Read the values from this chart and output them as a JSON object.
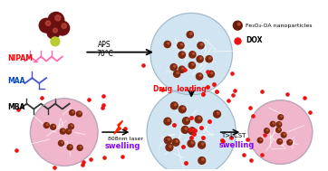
{
  "bg_color": "#ffffff",
  "legend": {
    "fe3o4_label": "Fe₃O₄-OA nanoparticles",
    "dox_label": "DOX",
    "fe3o4_color": "#6B1A0A",
    "dox_color": "#EE1111"
  },
  "labels": {
    "NIPAM": {
      "text": "NIPAM",
      "color": "#FF0000"
    },
    "MAA": {
      "text": "MAA",
      "color": "#0044CC"
    },
    "MBA": {
      "text": "MBA",
      "color": "#000000"
    },
    "APS": {
      "text": "APS",
      "color": "#000000"
    },
    "temp": {
      "text": "70°C",
      "color": "#000000"
    },
    "drug_loading": {
      "text": "Drug  loading",
      "color": "#FF0000"
    },
    "laser": {
      "text": "808nm laser",
      "color": "#000000"
    },
    "swelling1": {
      "text": "swelling",
      "color": "#8B00FF"
    },
    "T_lcst": {
      "text": "T>LCST",
      "color": "#000000"
    },
    "swelling2": {
      "text": "swelling",
      "color": "#8B00FF"
    }
  },
  "fe3o4_color": "#6B1A0A",
  "dox_color": "#EE1111",
  "gel_blue": "#B8D8EA",
  "gel_pink": "#E890B0",
  "monomer_pink": "#FF69B4",
  "monomer_blue": "#4455CC",
  "monomer_dark": "#333333"
}
